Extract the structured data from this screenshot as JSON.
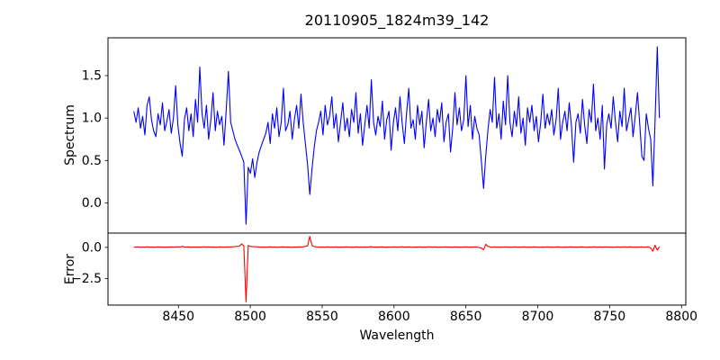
{
  "chart_data": {
    "type": "line",
    "title": "20110905_1824m39_142",
    "xlabel": "Wavelength",
    "grid": false,
    "legend": "none",
    "xlim": [
      8401,
      8803
    ],
    "xticks": [
      8450,
      8500,
      8550,
      8600,
      8650,
      8700,
      8750,
      8800
    ],
    "x_start": 8419.0,
    "x_step": 1.53,
    "panels": [
      {
        "name": "spectrum",
        "ylabel": "Spectrum",
        "ylim": [
          -0.355,
          1.945
        ],
        "yticks": [
          {
            "value": 0.0,
            "label": "0.0"
          },
          {
            "value": 0.5,
            "label": "0.5"
          },
          {
            "value": 1.0,
            "label": "1.0"
          },
          {
            "value": 1.5,
            "label": "1.5"
          }
        ],
        "series": [
          {
            "name": "spectrum",
            "color": "#0000ff",
            "values": [
              1.08,
              0.95,
              1.12,
              0.88,
              1.02,
              0.8,
              1.15,
              1.25,
              0.98,
              0.85,
              0.78,
              1.05,
              0.92,
              1.18,
              0.85,
              0.96,
              1.1,
              0.82,
              1.0,
              1.38,
              0.92,
              0.7,
              0.55,
              0.98,
              1.12,
              0.85,
              1.05,
              0.78,
              1.22,
              0.95,
              1.6,
              1.05,
              0.88,
              1.15,
              0.75,
              0.98,
              1.3,
              0.85,
              1.08,
              0.92,
              1.02,
              0.68,
              1.1,
              1.55,
              0.95,
              0.85,
              0.75,
              0.68,
              0.62,
              0.55,
              0.48,
              -0.25,
              0.42,
              0.35,
              0.52,
              0.3,
              0.48,
              0.6,
              0.68,
              0.75,
              0.82,
              0.95,
              0.7,
              1.05,
              0.88,
              1.12,
              0.78,
              0.95,
              1.35,
              0.85,
              0.92,
              1.08,
              0.75,
              0.98,
              1.15,
              0.88,
              1.28,
              0.95,
              0.7,
              0.45,
              0.1,
              0.4,
              0.65,
              0.85,
              0.95,
              1.08,
              0.8,
              1.15,
              0.92,
              1.02,
              1.25,
              0.88,
              1.05,
              0.72,
              0.95,
              1.18,
              0.85,
              1.0,
              0.78,
              1.1,
              0.95,
              1.3,
              0.82,
              1.05,
              0.68,
              0.92,
              1.15,
              0.88,
              1.45,
              0.95,
              0.8,
              1.02,
              0.9,
              1.2,
              0.75,
              0.98,
              1.08,
              0.62,
              0.95,
              1.12,
              0.85,
              1.25,
              0.95,
              0.7,
              1.05,
              1.35,
              0.88,
              0.98,
              0.75,
              1.15,
              0.92,
              1.08,
              0.65,
              0.95,
              1.22,
              0.85,
              1.0,
              0.78,
              1.1,
              0.95,
              1.18,
              0.72,
              0.95,
              1.05,
              0.6,
              0.88,
              1.3,
              0.92,
              1.12,
              0.85,
              0.98,
              1.5,
              0.9,
              1.15,
              0.75,
              1.02,
              0.88,
              0.8,
              0.5,
              0.17,
              0.55,
              0.85,
              1.1,
              0.95,
              1.48,
              0.88,
              1.05,
              0.75,
              1.2,
              0.92,
              1.5,
              0.95,
              0.78,
              1.08,
              0.9,
              1.25,
              0.82,
              1.0,
              0.68,
              1.12,
              0.95,
              1.15,
              0.85,
              1.02,
              0.72,
              0.95,
              1.28,
              0.88,
              1.05,
              0.92,
              1.1,
              0.8,
              0.98,
              1.35,
              0.75,
              0.95,
              1.08,
              0.85,
              1.18,
              0.9,
              0.48,
              0.95,
              1.05,
              0.82,
              1.22,
              0.92,
              0.7,
              1.1,
              0.95,
              1.4,
              0.85,
              1.0,
              0.75,
              1.15,
              0.4,
              0.92,
              1.05,
              0.88,
              1.25,
              0.95,
              0.72,
              1.08,
              0.9,
              1.35,
              0.85,
              0.98,
              1.12,
              0.78,
              1.02,
              1.3,
              0.95,
              0.55,
              0.5,
              1.05,
              0.88,
              0.75,
              0.2,
              0.95,
              1.84,
              1.0
            ]
          }
        ]
      },
      {
        "name": "error",
        "ylabel": "Error",
        "ylim": [
          -4.61,
          1.14
        ],
        "yticks": [
          {
            "value": 0.0,
            "label": "0.0"
          },
          {
            "value": -2.5,
            "label": "−2.5"
          }
        ],
        "series": [
          {
            "name": "error",
            "color": "#ff0000",
            "values": [
              0.03,
              0.02,
              0.04,
              0.01,
              0.03,
              0.02,
              0.05,
              0.02,
              0.03,
              0.01,
              0.02,
              0.04,
              0.02,
              0.03,
              0.01,
              0.03,
              0.02,
              0.04,
              0.02,
              0.03,
              0.05,
              0.02,
              0.08,
              0.03,
              0.02,
              0.04,
              0.01,
              0.03,
              0.02,
              0.03,
              0.02,
              0.03,
              0.05,
              0.02,
              0.04,
              0.02,
              0.03,
              0.01,
              0.02,
              0.04,
              0.03,
              0.02,
              0.04,
              0.03,
              0.05,
              0.04,
              0.06,
              0.08,
              0.1,
              0.28,
              0.12,
              -4.35,
              0.15,
              0.08,
              0.05,
              0.06,
              0.04,
              0.03,
              0.02,
              0.03,
              0.02,
              0.03,
              0.04,
              0.02,
              0.03,
              0.01,
              0.02,
              0.03,
              0.04,
              0.02,
              0.03,
              0.02,
              0.01,
              0.03,
              0.02,
              0.04,
              0.03,
              0.05,
              0.08,
              0.12,
              0.88,
              0.15,
              0.06,
              0.04,
              0.03,
              0.02,
              0.03,
              0.02,
              0.04,
              0.02,
              0.03,
              0.02,
              0.04,
              0.01,
              0.03,
              0.02,
              0.03,
              0.04,
              0.02,
              0.03,
              0.02,
              0.04,
              0.02,
              0.03,
              0.01,
              0.03,
              0.02,
              0.04,
              0.05,
              0.02,
              0.03,
              0.02,
              0.03,
              0.04,
              0.01,
              0.02,
              0.03,
              0.02,
              0.04,
              0.03,
              0.02,
              0.03,
              0.05,
              0.02,
              0.03,
              0.04,
              0.02,
              0.01,
              0.03,
              0.02,
              0.04,
              0.02,
              0.03,
              0.02,
              0.05,
              0.03,
              0.02,
              0.04,
              0.01,
              0.03,
              0.02,
              0.03,
              0.04,
              0.02,
              0.03,
              0.01,
              0.04,
              0.02,
              0.03,
              0.02,
              0.03,
              0.04,
              0.02,
              0.03,
              0.02,
              0.04,
              0.03,
              -0.02,
              -0.05,
              -0.18,
              0.25,
              0.08,
              0.03,
              0.02,
              0.04,
              0.02,
              0.03,
              0.02,
              0.03,
              0.04,
              0.02,
              0.03,
              0.01,
              0.04,
              0.02,
              0.03,
              0.02,
              0.04,
              0.03,
              0.02,
              0.03,
              0.02,
              0.04,
              0.03,
              0.01,
              0.02,
              0.03,
              0.02,
              0.04,
              0.02,
              0.03,
              0.02,
              0.03,
              0.04,
              0.02,
              0.01,
              0.03,
              0.02,
              0.03,
              0.04,
              0.02,
              0.03,
              0.02,
              0.04,
              0.03,
              0.02,
              0.01,
              0.03,
              0.02,
              0.05,
              0.03,
              0.02,
              0.04,
              0.02,
              0.03,
              0.04,
              0.02,
              0.03,
              0.01,
              0.02,
              0.04,
              0.02,
              0.03,
              0.05,
              0.02,
              0.03,
              0.04,
              0.02,
              0.03,
              0.02,
              0.03,
              0.04,
              0.02,
              0.03,
              0.05,
              -0.05,
              -0.3,
              0.18,
              -0.22,
              0.05
            ]
          }
        ]
      }
    ]
  }
}
